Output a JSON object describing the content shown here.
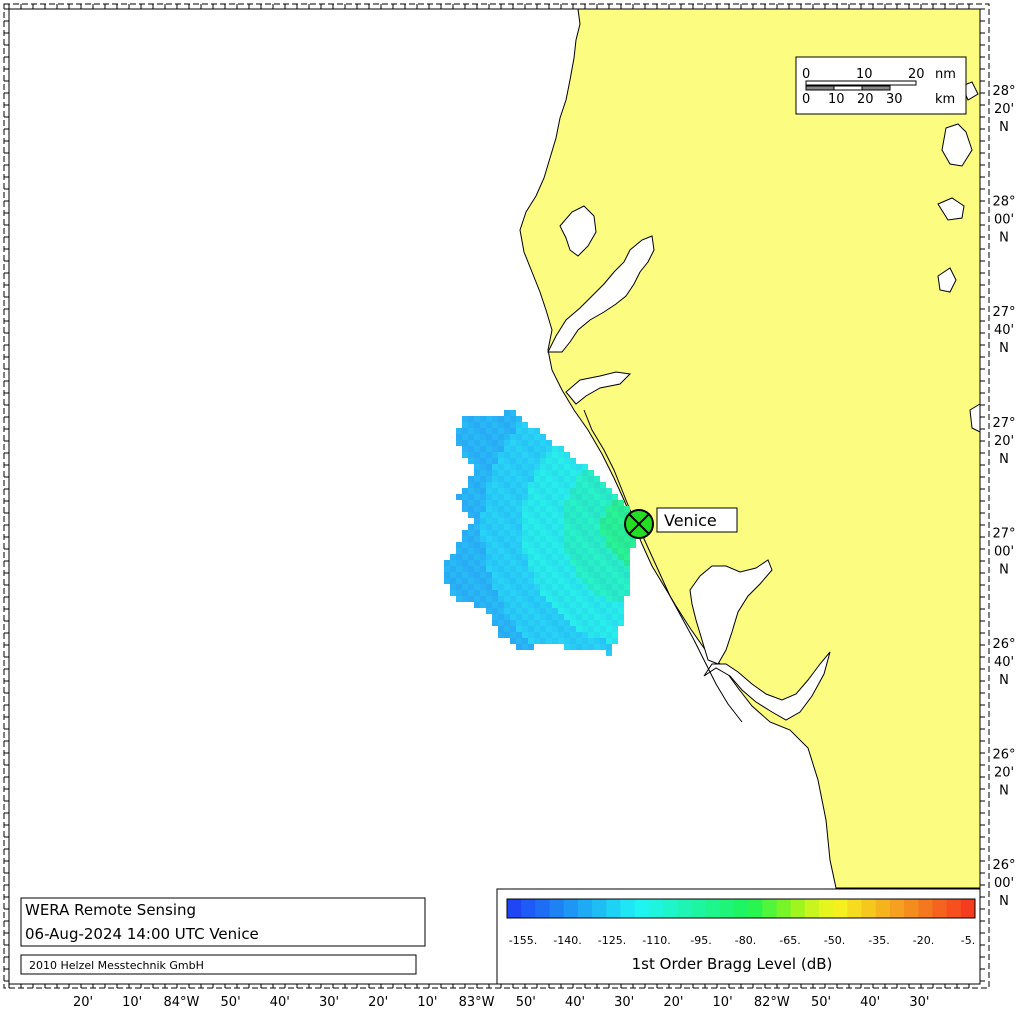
{
  "colors": {
    "land": "#fcfc80",
    "sea": "#ffffff",
    "outline": "#000000",
    "site_marker": "#22dd22"
  },
  "title_box": {
    "line1": "WERA Remote Sensing",
    "line2": "06-Aug-2024 14:00 UTC  Venice",
    "copyright": "2010 Helzel Messtechnik GmbH"
  },
  "site": {
    "name": "Venice",
    "icon": "circle-x-marker-icon"
  },
  "scale_bar": {
    "nm_ticks": [
      "0",
      "10",
      "20"
    ],
    "nm_unit": "nm",
    "km_ticks": [
      "0",
      "10",
      "20",
      "30"
    ],
    "km_unit": "km"
  },
  "colorbar": {
    "title": "1st Order Bragg Level (dB)",
    "ticks": [
      "-155.",
      "-140.",
      "-125.",
      "-110.",
      "-95.",
      "-80.",
      "-65.",
      "-50.",
      "-35.",
      "-20.",
      "-5."
    ],
    "colors": [
      "#1e46f5",
      "#1e5af5",
      "#1e6ef5",
      "#1e82f5",
      "#1e96f5",
      "#1eaaf5",
      "#1ebef5",
      "#1ed2f5",
      "#1ee6f5",
      "#1ef5f0",
      "#1ef5dc",
      "#1ef5c8",
      "#1ef5b4",
      "#1ef5a0",
      "#1ef58c",
      "#1ef578",
      "#1ef564",
      "#28f550",
      "#50f53c",
      "#78f528",
      "#a0f51e",
      "#c8f51e",
      "#e6f51e",
      "#f5f01e",
      "#f5dc1e",
      "#f5c81e",
      "#f5b41e",
      "#f5a01e",
      "#f58c1e",
      "#f5781e",
      "#f5641e",
      "#f5501e",
      "#f53c1e"
    ]
  },
  "lon_labels": [
    "20'",
    "10'",
    "84°W",
    "50'",
    "40'",
    "30'",
    "20'",
    "10'",
    "83°W",
    "50'",
    "40'",
    "30'",
    "20'",
    "10'",
    "82°W",
    "50'",
    "40'",
    "30'"
  ],
  "lat_labels": [
    [
      "28°",
      "20'",
      "N"
    ],
    [
      "28°",
      "00'",
      "N"
    ],
    [
      "27°",
      "40'",
      "N"
    ],
    [
      "27°",
      "20'",
      "N"
    ],
    [
      "27°",
      "00'",
      "N"
    ],
    [
      "26°",
      "40'",
      "N"
    ],
    [
      "26°",
      "20'",
      "N"
    ],
    [
      "26°",
      "00'",
      "N"
    ]
  ]
}
